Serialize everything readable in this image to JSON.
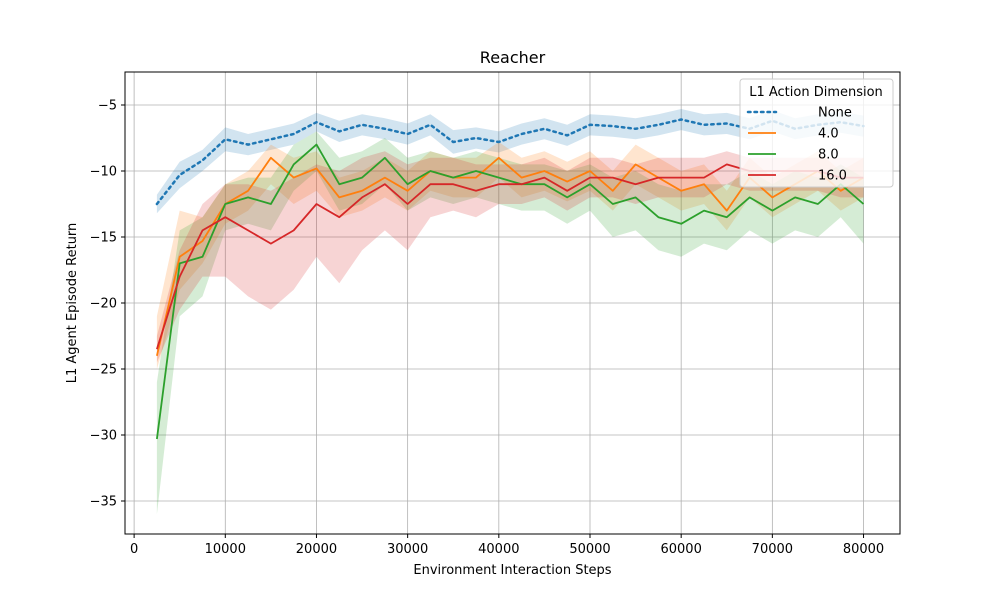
{
  "chart_data": {
    "type": "line",
    "title": "Reacher",
    "xlabel": "Environment Interaction Steps",
    "ylabel": "L1 Agent Episode Return",
    "xlim": [
      -1000,
      84000
    ],
    "ylim": [
      -37.5,
      -2.5
    ],
    "x_ticks": [
      0,
      10000,
      20000,
      30000,
      40000,
      50000,
      60000,
      70000,
      80000
    ],
    "y_ticks": [
      -35,
      -30,
      -25,
      -20,
      -15,
      -10,
      -5
    ],
    "grid": true,
    "legend": {
      "title": "L1 Action Dimension",
      "placement": "top-right"
    },
    "x": [
      2500,
      5000,
      7500,
      10000,
      12500,
      15000,
      17500,
      20000,
      22500,
      25000,
      27500,
      30000,
      32500,
      35000,
      37500,
      40000,
      42500,
      45000,
      47500,
      50000,
      52500,
      55000,
      57500,
      60000,
      62500,
      65000,
      67500,
      70000,
      72500,
      75000,
      77500,
      80000
    ],
    "series": [
      {
        "name": "None",
        "color": "#1f77b4",
        "style": "dotted",
        "values": [
          -12.5,
          -10.3,
          -9.2,
          -7.6,
          -8.0,
          -7.6,
          -7.2,
          -6.3,
          -7.0,
          -6.5,
          -6.8,
          -7.2,
          -6.5,
          -7.8,
          -7.5,
          -7.8,
          -7.2,
          -6.8,
          -7.3,
          -6.5,
          -6.6,
          -6.8,
          -6.5,
          -6.1,
          -6.5,
          -6.4,
          -6.8,
          -6.2,
          -6.8,
          -6.5,
          -6.3,
          -6.6
        ],
        "lower": [
          -13.2,
          -11.3,
          -10.0,
          -8.5,
          -8.8,
          -8.4,
          -8.0,
          -7.0,
          -7.8,
          -7.3,
          -7.6,
          -8.0,
          -7.3,
          -8.7,
          -8.3,
          -8.6,
          -8.0,
          -7.6,
          -8.1,
          -7.3,
          -7.4,
          -7.6,
          -7.3,
          -6.9,
          -7.3,
          -7.2,
          -7.6,
          -7.0,
          -7.6,
          -7.3,
          -7.1,
          -7.4
        ],
        "upper": [
          -11.8,
          -9.3,
          -8.4,
          -6.7,
          -7.2,
          -6.8,
          -6.4,
          -5.6,
          -6.2,
          -5.7,
          -6.0,
          -6.4,
          -5.7,
          -6.9,
          -6.7,
          -7.0,
          -6.4,
          -6.0,
          -6.5,
          -5.7,
          -5.8,
          -6.0,
          -5.7,
          -5.3,
          -5.7,
          -5.6,
          -6.0,
          -5.4,
          -6.0,
          -5.7,
          -5.5,
          -5.8
        ]
      },
      {
        "name": "4.0",
        "color": "#ff7f0e",
        "style": "solid",
        "values": [
          -24.0,
          -16.5,
          -15.3,
          -12.5,
          -11.5,
          -9.0,
          -10.5,
          -9.8,
          -12.0,
          -11.5,
          -10.5,
          -11.5,
          -10.0,
          -10.5,
          -10.5,
          -9.0,
          -10.5,
          -10.0,
          -10.8,
          -10.0,
          -11.5,
          -9.5,
          -10.5,
          -11.5,
          -11.0,
          -13.0,
          -10.5,
          -12.0,
          -11.0,
          -10.0,
          -11.5,
          -10.5
        ],
        "lower": [
          -25.0,
          -19.0,
          -17.0,
          -14.0,
          -13.0,
          -11.0,
          -12.5,
          -11.5,
          -13.5,
          -13.0,
          -12.0,
          -13.0,
          -11.5,
          -12.0,
          -12.0,
          -10.5,
          -12.0,
          -11.5,
          -12.3,
          -11.5,
          -13.0,
          -11.0,
          -12.0,
          -13.0,
          -12.5,
          -14.5,
          -12.0,
          -13.5,
          -12.5,
          -11.5,
          -13.0,
          -12.0
        ],
        "upper": [
          -21.0,
          -13.0,
          -13.5,
          -11.0,
          -10.0,
          -8.0,
          -9.0,
          -8.5,
          -10.5,
          -10.0,
          -9.0,
          -10.0,
          -8.5,
          -9.0,
          -9.0,
          -7.8,
          -9.0,
          -8.5,
          -9.3,
          -8.5,
          -10.0,
          -8.0,
          -9.0,
          -10.0,
          -9.5,
          -11.5,
          -9.0,
          -10.5,
          -9.5,
          -8.5,
          -10.0,
          -9.0
        ]
      },
      {
        "name": "8.0",
        "color": "#2ca02c",
        "style": "solid",
        "values": [
          -30.3,
          -17.0,
          -16.5,
          -12.5,
          -12.0,
          -12.5,
          -9.5,
          -8.0,
          -11.0,
          -10.5,
          -9.0,
          -11.0,
          -10.0,
          -10.5,
          -10.0,
          -10.5,
          -11.0,
          -11.0,
          -12.0,
          -11.0,
          -12.5,
          -12.0,
          -13.5,
          -14.0,
          -13.0,
          -13.5,
          -12.0,
          -13.0,
          -12.0,
          -12.5,
          -11.0,
          -12.5
        ],
        "lower": [
          -36.0,
          -21.0,
          -19.5,
          -14.5,
          -14.0,
          -14.5,
          -11.5,
          -10.0,
          -13.0,
          -12.5,
          -11.0,
          -13.0,
          -12.0,
          -12.5,
          -12.0,
          -12.5,
          -13.0,
          -13.0,
          -14.0,
          -13.0,
          -15.0,
          -14.5,
          -16.0,
          -16.5,
          -15.5,
          -16.0,
          -14.5,
          -15.5,
          -14.5,
          -15.0,
          -13.5,
          -15.5
        ],
        "upper": [
          -26.0,
          -14.5,
          -13.5,
          -11.0,
          -10.5,
          -10.5,
          -8.0,
          -7.0,
          -9.0,
          -8.5,
          -7.5,
          -9.0,
          -8.5,
          -9.0,
          -8.5,
          -9.0,
          -9.5,
          -9.5,
          -10.0,
          -9.5,
          -10.5,
          -10.0,
          -11.0,
          -11.5,
          -11.0,
          -11.0,
          -10.0,
          -11.0,
          -10.0,
          -10.5,
          -9.5,
          -10.5
        ]
      },
      {
        "name": "16.0",
        "color": "#d62728",
        "style": "solid",
        "values": [
          -23.5,
          -18.0,
          -14.5,
          -13.5,
          -14.5,
          -15.5,
          -14.5,
          -12.5,
          -13.5,
          -12.0,
          -11.0,
          -12.5,
          -11.0,
          -11.0,
          -11.5,
          -11.0,
          -11.0,
          -10.5,
          -11.5,
          -10.5,
          -10.5,
          -11.0,
          -10.5,
          -10.5,
          -10.5,
          -9.5,
          -10.0,
          -10.0,
          -10.0,
          -10.0,
          -10.5,
          -10.5
        ],
        "lower": [
          -24.5,
          -20.5,
          -18.0,
          -18.0,
          -19.5,
          -20.5,
          -19.0,
          -16.5,
          -18.5,
          -16.0,
          -14.5,
          -16.0,
          -13.5,
          -13.0,
          -13.5,
          -12.5,
          -12.5,
          -12.0,
          -13.0,
          -12.0,
          -12.0,
          -12.5,
          -12.0,
          -12.0,
          -12.0,
          -11.0,
          -11.5,
          -11.5,
          -11.5,
          -11.5,
          -12.0,
          -12.0
        ],
        "upper": [
          -22.5,
          -16.0,
          -12.5,
          -11.0,
          -11.0,
          -11.5,
          -10.5,
          -9.5,
          -10.0,
          -9.0,
          -8.5,
          -9.5,
          -9.0,
          -9.0,
          -9.5,
          -9.5,
          -9.5,
          -9.0,
          -10.0,
          -9.0,
          -9.0,
          -9.5,
          -9.0,
          -9.0,
          -9.0,
          -8.5,
          -9.0,
          -9.0,
          -9.0,
          -9.0,
          -9.0,
          -9.0
        ]
      }
    ]
  }
}
